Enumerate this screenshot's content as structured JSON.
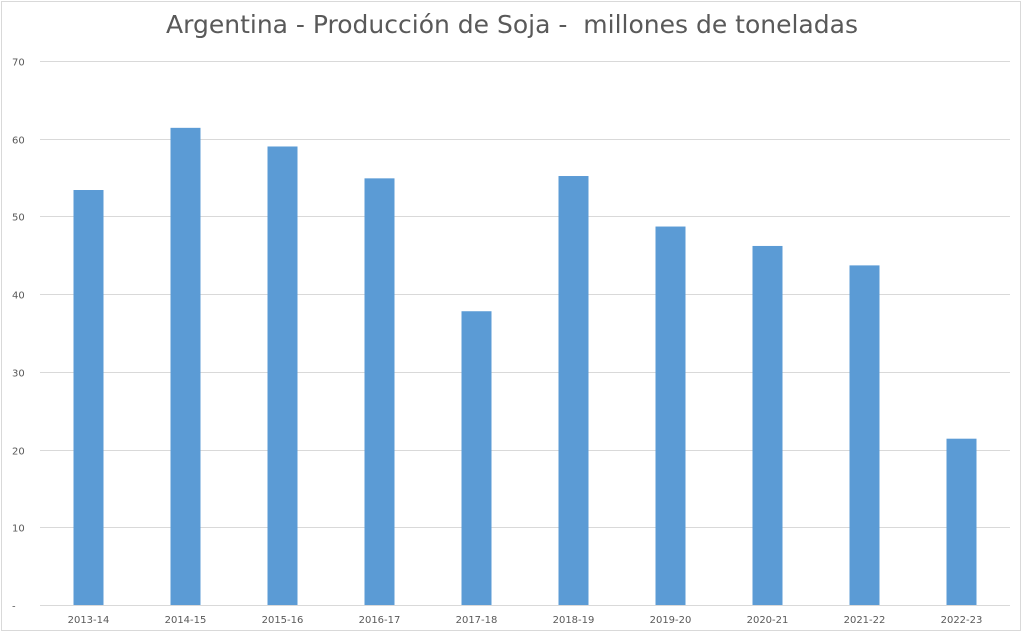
{
  "chart_data": {
    "type": "bar",
    "title": "Argentina - Producción de Soja -  millones de toneladas",
    "xlabel": "",
    "ylabel": "",
    "categories": [
      "2013-14",
      "2014-15",
      "2015-16",
      "2016-17",
      "2017-18",
      "2018-19",
      "2019-20",
      "2020-21",
      "2021-22",
      "2022-23"
    ],
    "values": [
      53.4,
      61.4,
      59.0,
      54.9,
      37.8,
      55.2,
      48.7,
      46.2,
      43.7,
      21.4
    ],
    "ylim": [
      0,
      70
    ],
    "yticks": [
      "-",
      "10",
      "20",
      "30",
      "40",
      "50",
      "60",
      "70"
    ],
    "grid": true,
    "legend": "none",
    "bar_color": "#5b9bd5"
  }
}
